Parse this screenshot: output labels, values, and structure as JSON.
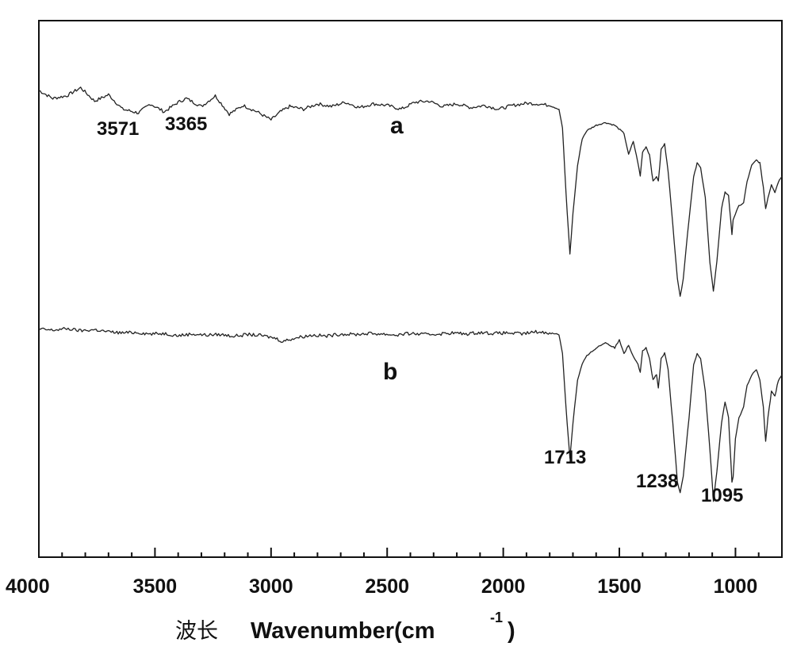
{
  "chart_data": {
    "type": "line",
    "title": "",
    "xlabel_prefix": "波长",
    "xlabel_main": "Wavenumber(cm",
    "xlabel_sup": "-1",
    "xlabel_close": ")",
    "ylabel": "",
    "xlim": [
      4000,
      800
    ],
    "x_reversed": true,
    "x_ticks": [
      "4000",
      "3500",
      "3000",
      "2500",
      "2000",
      "1500",
      "1000"
    ],
    "y_ticks": [],
    "grid": false,
    "legend": "none",
    "series": [
      {
        "name": "a",
        "x": [
          4000,
          3940,
          3880,
          3820,
          3760,
          3700,
          3640,
          3571,
          3520,
          3460,
          3400,
          3365,
          3300,
          3240,
          3180,
          3120,
          3060,
          3000,
          2960,
          2920,
          2860,
          2800,
          2740,
          2680,
          2620,
          2560,
          2500,
          2440,
          2380,
          2320,
          2260,
          2200,
          2140,
          2080,
          2020,
          1960,
          1900,
          1850,
          1800,
          1760,
          1745,
          1730,
          1713,
          1700,
          1680,
          1660,
          1640,
          1600,
          1560,
          1520,
          1480,
          1460,
          1440,
          1420,
          1410,
          1400,
          1385,
          1370,
          1355,
          1340,
          1332,
          1320,
          1305,
          1290,
          1270,
          1250,
          1238,
          1225,
          1200,
          1180,
          1165,
          1150,
          1130,
          1110,
          1095,
          1080,
          1060,
          1045,
          1030,
          1015,
          1010,
          1000,
          985,
          965,
          950,
          930,
          910,
          895,
          880,
          870,
          860,
          845,
          830,
          815,
          800
        ],
        "values": [
          87,
          85.5,
          86,
          87.5,
          85,
          86.2,
          83.5,
          82.8,
          84.5,
          83,
          84.8,
          85.5,
          84,
          86,
          82.6,
          84.2,
          83,
          81.5,
          83,
          84,
          83.5,
          84.5,
          84,
          84.8,
          83.8,
          84.5,
          84.2,
          83.5,
          84.8,
          85,
          84,
          84.5,
          83.8,
          84.2,
          83.5,
          84.2,
          84.6,
          84.5,
          84.2,
          83.5,
          80,
          68,
          56.5,
          64,
          73,
          78,
          79.5,
          80.5,
          81,
          80.5,
          79,
          75,
          77.5,
          73.5,
          71,
          75.5,
          76.5,
          75,
          70,
          71,
          70,
          76,
          77,
          72,
          62,
          52,
          48.5,
          52,
          63,
          71,
          73.5,
          72.5,
          67,
          55,
          49.5,
          55,
          65,
          68,
          67.5,
          60,
          63,
          64,
          65.5,
          66,
          70,
          73,
          74,
          73.5,
          69,
          65,
          67,
          69.5,
          68,
          70,
          71
        ]
      },
      {
        "name": "b",
        "x": [
          4000,
          3940,
          3880,
          3820,
          3760,
          3700,
          3640,
          3580,
          3520,
          3460,
          3400,
          3340,
          3280,
          3220,
          3160,
          3100,
          3040,
          2980,
          2950,
          2920,
          2880,
          2820,
          2760,
          2700,
          2640,
          2580,
          2520,
          2460,
          2400,
          2340,
          2280,
          2220,
          2160,
          2100,
          2040,
          1980,
          1920,
          1860,
          1800,
          1760,
          1745,
          1730,
          1713,
          1700,
          1680,
          1660,
          1640,
          1600,
          1560,
          1520,
          1500,
          1480,
          1460,
          1440,
          1420,
          1410,
          1400,
          1385,
          1370,
          1355,
          1340,
          1332,
          1320,
          1305,
          1290,
          1270,
          1250,
          1238,
          1225,
          1200,
          1180,
          1165,
          1150,
          1130,
          1110,
          1095,
          1080,
          1060,
          1045,
          1030,
          1015,
          1010,
          1000,
          985,
          965,
          950,
          930,
          910,
          895,
          880,
          870,
          860,
          845,
          830,
          815,
          800
        ],
        "values": [
          42.5,
          42.3,
          42.6,
          42.2,
          42.4,
          42,
          41.8,
          41.9,
          41.6,
          41.7,
          41.3,
          41.6,
          41.4,
          41.5,
          41.2,
          41.5,
          41.3,
          40.8,
          40.2,
          40.6,
          41,
          41.4,
          41.2,
          41.6,
          41.5,
          41.7,
          41.6,
          41.4,
          41.7,
          41.5,
          41.6,
          41.8,
          41.6,
          41.9,
          41.7,
          41.8,
          41.6,
          42,
          41.8,
          41.5,
          38,
          28,
          18.5,
          25,
          33,
          36,
          37.5,
          39,
          40,
          39,
          40.5,
          38,
          39.5,
          37.5,
          36,
          34.5,
          38.5,
          39,
          37,
          33,
          34,
          31.5,
          37,
          38,
          35,
          25,
          14,
          12,
          15,
          26,
          36,
          38,
          37,
          31,
          20,
          10.5,
          16,
          25,
          29,
          26,
          14,
          15,
          22,
          26,
          28,
          32,
          34,
          35,
          33,
          28,
          21.5,
          26,
          31,
          30,
          33,
          34
        ]
      }
    ],
    "annotations": [
      "3571",
      "3365",
      "1713",
      "1238",
      "1095"
    ],
    "series_labels": [
      "a",
      "b"
    ]
  }
}
